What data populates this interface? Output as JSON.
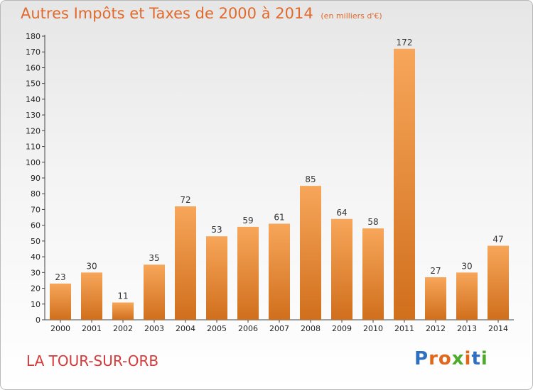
{
  "header": {
    "title": "Autres Impôts et Taxes de 2000 à 2014",
    "subtitle": "(en milliers d'€)"
  },
  "footer": {
    "town": "LA TOUR-SUR-ORB",
    "logo_letters": [
      {
        "ch": "P",
        "color": "#2f6fc0"
      },
      {
        "ch": "r",
        "color": "#e2671a"
      },
      {
        "ch": "o",
        "color": "#e2671a"
      },
      {
        "ch": "x",
        "color": "#4cab2b"
      },
      {
        "ch": "i",
        "color": "#e2671a"
      },
      {
        "ch": "t",
        "color": "#2f6fc0"
      },
      {
        "ch": "i",
        "color": "#4cab2b"
      }
    ]
  },
  "chart_data": {
    "type": "bar",
    "title": "Autres Impôts et Taxes de 2000 à 2014",
    "subtitle": "(en milliers d'€)",
    "categories": [
      "2000",
      "2001",
      "2002",
      "2003",
      "2004",
      "2005",
      "2006",
      "2007",
      "2008",
      "2009",
      "2010",
      "2011",
      "2012",
      "2013",
      "2014"
    ],
    "values": [
      23,
      30,
      11,
      35,
      72,
      53,
      59,
      61,
      85,
      64,
      58,
      172,
      27,
      30,
      47
    ],
    "ylim": [
      0,
      180
    ],
    "yticks": [
      0,
      10,
      20,
      30,
      40,
      50,
      60,
      70,
      80,
      90,
      100,
      110,
      120,
      130,
      140,
      150,
      160,
      170,
      180
    ],
    "grid": false,
    "bar_color_top": "#f7a65a",
    "bar_color_bottom": "#d06f1c"
  }
}
